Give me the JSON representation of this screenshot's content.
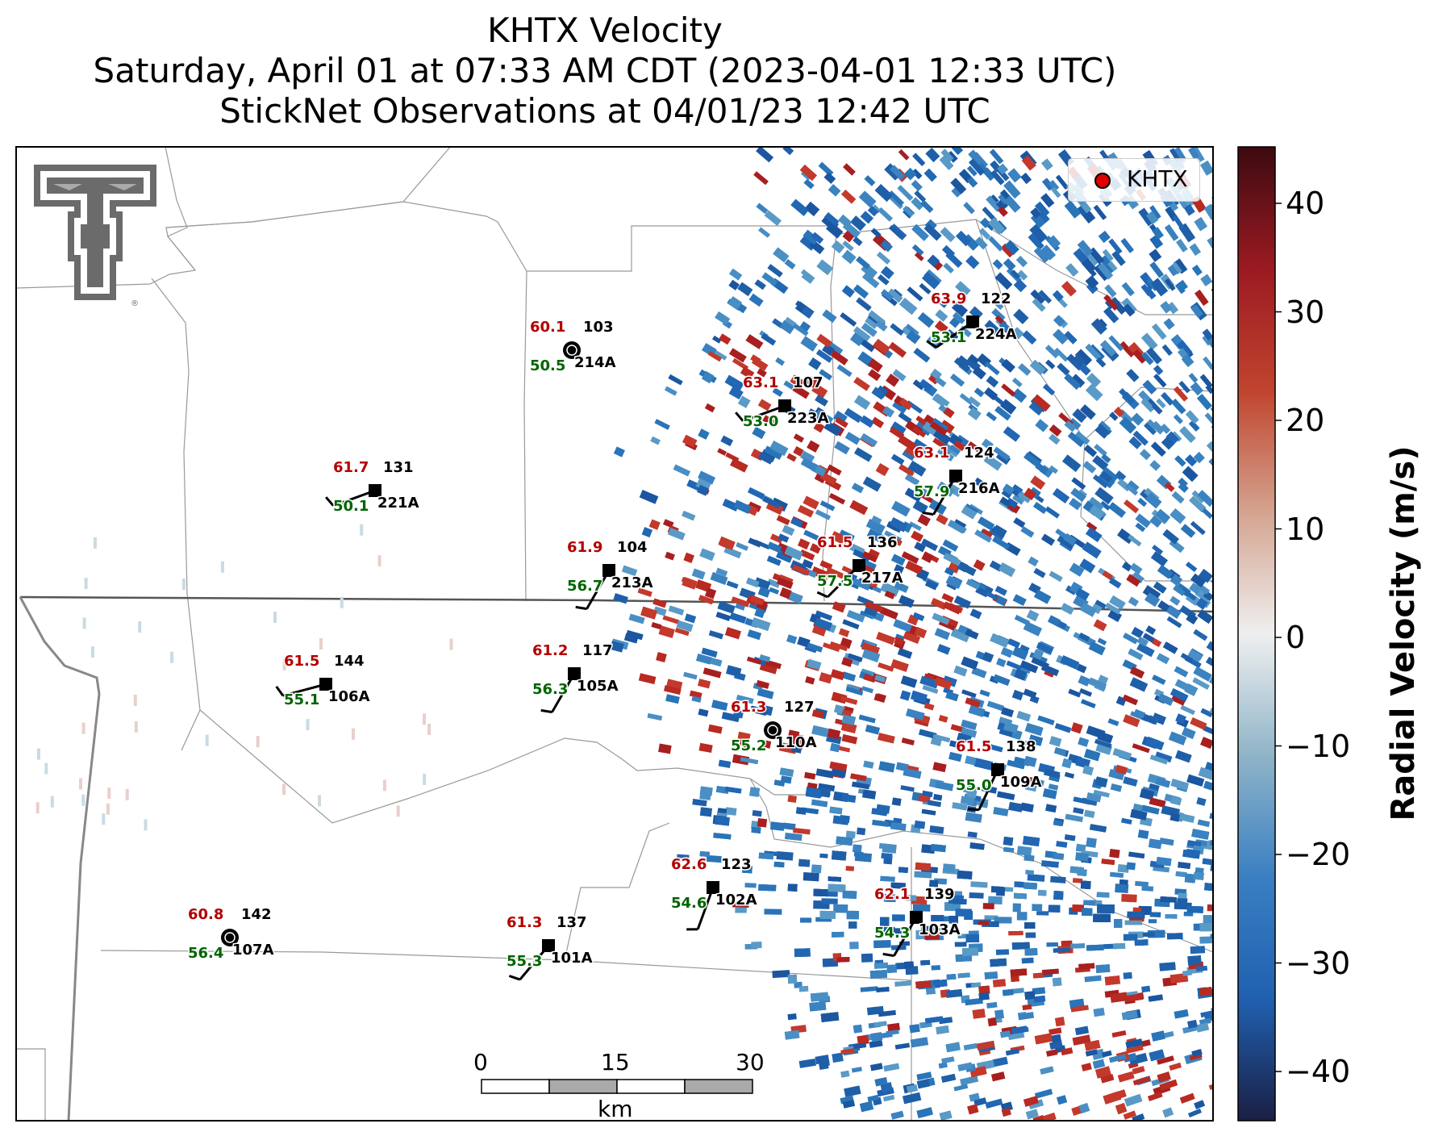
{
  "title": {
    "line1": "KHTX Velocity",
    "line2": "Saturday, April 01 at 07:33 AM CDT (2023-04-01 12:33 UTC)",
    "line3": "StickNet Observations at 04/01/23 12:42 UTC"
  },
  "legend": {
    "label": "KHTX",
    "marker_color": "#e00000"
  },
  "colorbar": {
    "label": "Radial Velocity (m/s)",
    "ticks": [
      "40",
      "30",
      "20",
      "10",
      "0",
      "−10",
      "−20",
      "−30",
      "−40"
    ],
    "colors": [
      "#1b1f44",
      "#2060b0",
      "#3a7fc2",
      "#8fb4c8",
      "#efefef",
      "#d4a38f",
      "#c0442e",
      "#9b1a22",
      "#3d0a10"
    ]
  },
  "scale_bar": {
    "ticks": [
      "0",
      "15",
      "30"
    ],
    "unit": "km"
  },
  "stations": [
    {
      "id": "103",
      "code": "214A",
      "temp": "60.1",
      "dew": "50.5",
      "marker": "circle"
    },
    {
      "id": "122",
      "code": "224A",
      "temp": "63.9",
      "dew": "53.1",
      "marker": "square"
    },
    {
      "id": "107",
      "code": "223A",
      "temp": "63.1",
      "dew": "53.0",
      "marker": "square"
    },
    {
      "id": "131",
      "code": "221A",
      "temp": "61.7",
      "dew": "50.1",
      "marker": "square"
    },
    {
      "id": "124",
      "code": "216A",
      "temp": "63.1",
      "dew": "57.9",
      "marker": "square"
    },
    {
      "id": "104",
      "code": "213A",
      "temp": "61.9",
      "dew": "56.7",
      "marker": "square"
    },
    {
      "id": "136",
      "code": "217A",
      "temp": "61.5",
      "dew": "57.5",
      "marker": "square"
    },
    {
      "id": "144",
      "code": "106A",
      "temp": "61.5",
      "dew": "55.1",
      "marker": "square"
    },
    {
      "id": "117",
      "code": "105A",
      "temp": "61.2",
      "dew": "56.3",
      "marker": "square"
    },
    {
      "id": "127",
      "code": "110A",
      "temp": "61.3",
      "dew": "55.2",
      "marker": "circle"
    },
    {
      "id": "138",
      "code": "109A",
      "temp": "61.5",
      "dew": "55.0",
      "marker": "square"
    },
    {
      "id": "123",
      "code": "102A",
      "temp": "62.6",
      "dew": "54.6",
      "marker": "square"
    },
    {
      "id": "139",
      "code": "103A",
      "temp": "62.1",
      "dew": "54.3",
      "marker": "square"
    },
    {
      "id": "142",
      "code": "107A",
      "temp": "60.8",
      "dew": "56.4",
      "marker": "circle"
    },
    {
      "id": "137",
      "code": "101A",
      "temp": "61.3",
      "dew": "55.3",
      "marker": "square"
    }
  ]
}
